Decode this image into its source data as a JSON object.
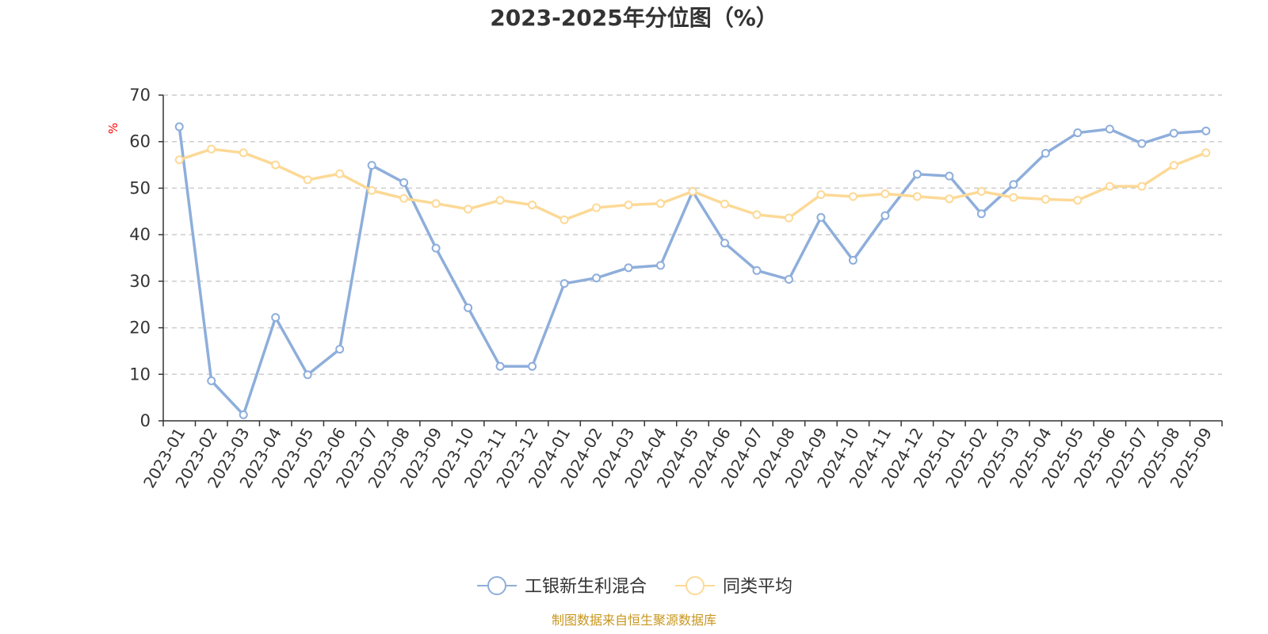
{
  "chart_data": {
    "type": "line",
    "title": "2023-2025年分位图（%）",
    "y_unit": "%",
    "ylim": [
      0,
      70
    ],
    "y_ticks": [
      0,
      10,
      20,
      30,
      40,
      50,
      60,
      70
    ],
    "grid": true,
    "legend_placement": "bottom",
    "categories": [
      "2023-01",
      "2023-02",
      "2023-03",
      "2023-04",
      "2023-05",
      "2023-06",
      "2023-07",
      "2023-08",
      "2023-09",
      "2023-10",
      "2023-11",
      "2023-12",
      "2024-01",
      "2024-02",
      "2024-03",
      "2024-04",
      "2024-05",
      "2024-06",
      "2024-07",
      "2024-08",
      "2024-09",
      "2024-10",
      "2024-11",
      "2024-12",
      "2025-01",
      "2025-02",
      "2025-03",
      "2025-04",
      "2025-05",
      "2025-06",
      "2025-07",
      "2025-08",
      "2025-09"
    ],
    "series": [
      {
        "name": "工银新生利混合",
        "color": "#8eaedb",
        "values": [
          63.2,
          8.6,
          1.3,
          22.2,
          9.9,
          15.4,
          54.9,
          51.2,
          37.1,
          24.3,
          11.7,
          11.7,
          29.5,
          30.7,
          32.9,
          33.4,
          49.3,
          38.2,
          32.3,
          30.4,
          43.7,
          34.5,
          44.1,
          53.0,
          52.6,
          44.5,
          50.8,
          57.5,
          61.9,
          62.7,
          59.6,
          61.8,
          62.3
        ]
      },
      {
        "name": "同类平均",
        "color": "#fcd996",
        "values": [
          56.1,
          58.4,
          57.6,
          55.0,
          51.8,
          53.1,
          49.5,
          47.8,
          46.7,
          45.5,
          47.4,
          46.4,
          43.2,
          45.8,
          46.4,
          46.7,
          49.3,
          46.6,
          44.3,
          43.6,
          48.6,
          48.2,
          48.8,
          48.2,
          47.7,
          49.3,
          48.0,
          47.6,
          47.4,
          50.4,
          50.4,
          54.9,
          57.6
        ]
      }
    ]
  },
  "footer": {
    "source": "制图数据来自恒生聚源数据库"
  }
}
